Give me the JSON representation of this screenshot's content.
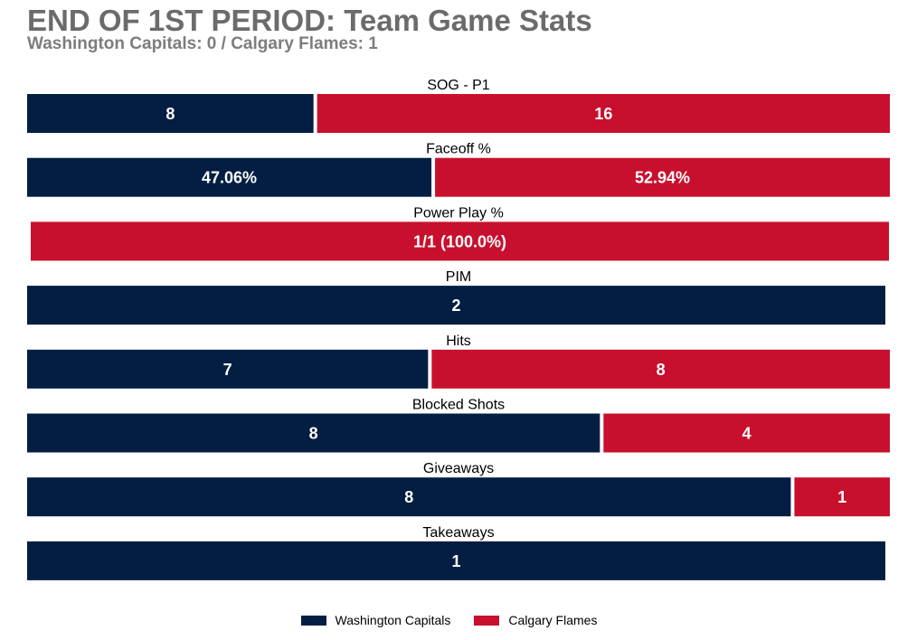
{
  "title": "END OF 1ST PERIOD: Team Game Stats",
  "subtitle": "Washington Capitals: 0 / Calgary Flames: 1",
  "colors": {
    "washington": "#031e42",
    "calgary": "#c8102e"
  },
  "chart_data": {
    "type": "bar",
    "orientation": "horizontal-stacked-share",
    "categories": [
      "SOG - P1",
      "Faceoff %",
      "Power Play %",
      "PIM",
      "Hits",
      "Blocked Shots",
      "Giveaways",
      "Takeaways"
    ],
    "series": [
      {
        "name": "Washington Capitals",
        "values": [
          8,
          47.06,
          0,
          2,
          7,
          8,
          8,
          1
        ],
        "labels": [
          "8",
          "47.06%",
          "",
          "2",
          "7",
          "8",
          "8",
          "1"
        ]
      },
      {
        "name": "Calgary Flames",
        "values": [
          16,
          52.94,
          1,
          0,
          8,
          4,
          1,
          0
        ],
        "labels": [
          "16",
          "52.94%",
          "1/1 (100.0%)",
          "",
          "8",
          "4",
          "1",
          ""
        ]
      }
    ],
    "legend_position": "bottom-center",
    "grid": false
  }
}
